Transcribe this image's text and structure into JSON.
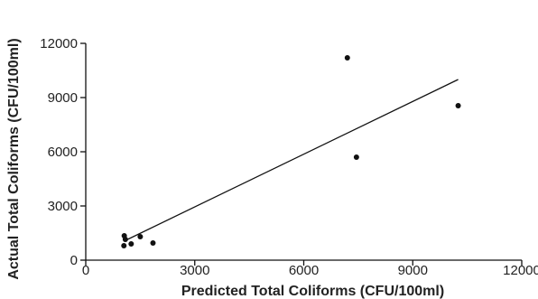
{
  "chart_data": {
    "type": "scatter",
    "title": "",
    "xlabel": "Predicted Total Coliforms (CFU/100ml)",
    "ylabel": "Actual Total Coliforms (CFU/100ml)",
    "xlim": [
      0,
      12000
    ],
    "ylim": [
      0,
      12000
    ],
    "x_ticks": [
      0,
      3000,
      6000,
      9000,
      12000
    ],
    "y_ticks": [
      0,
      3000,
      6000,
      9000,
      12000
    ],
    "grid": false,
    "legend": "none",
    "colors": {
      "points": "#111111",
      "line": "#111111",
      "axis": "#111111"
    },
    "series": [
      {
        "points": [
          {
            "x": 1060,
            "y": 1350
          },
          {
            "x": 1090,
            "y": 1150
          },
          {
            "x": 1050,
            "y": 800
          },
          {
            "x": 1250,
            "y": 900
          },
          {
            "x": 1500,
            "y": 1300
          },
          {
            "x": 1850,
            "y": 950
          },
          {
            "x": 7200,
            "y": 11200
          },
          {
            "x": 7450,
            "y": 5700
          },
          {
            "x": 10250,
            "y": 8550
          }
        ]
      }
    ],
    "trendline": {
      "x": [
        1050,
        10250
      ],
      "y": [
        1050,
        10000
      ]
    }
  }
}
